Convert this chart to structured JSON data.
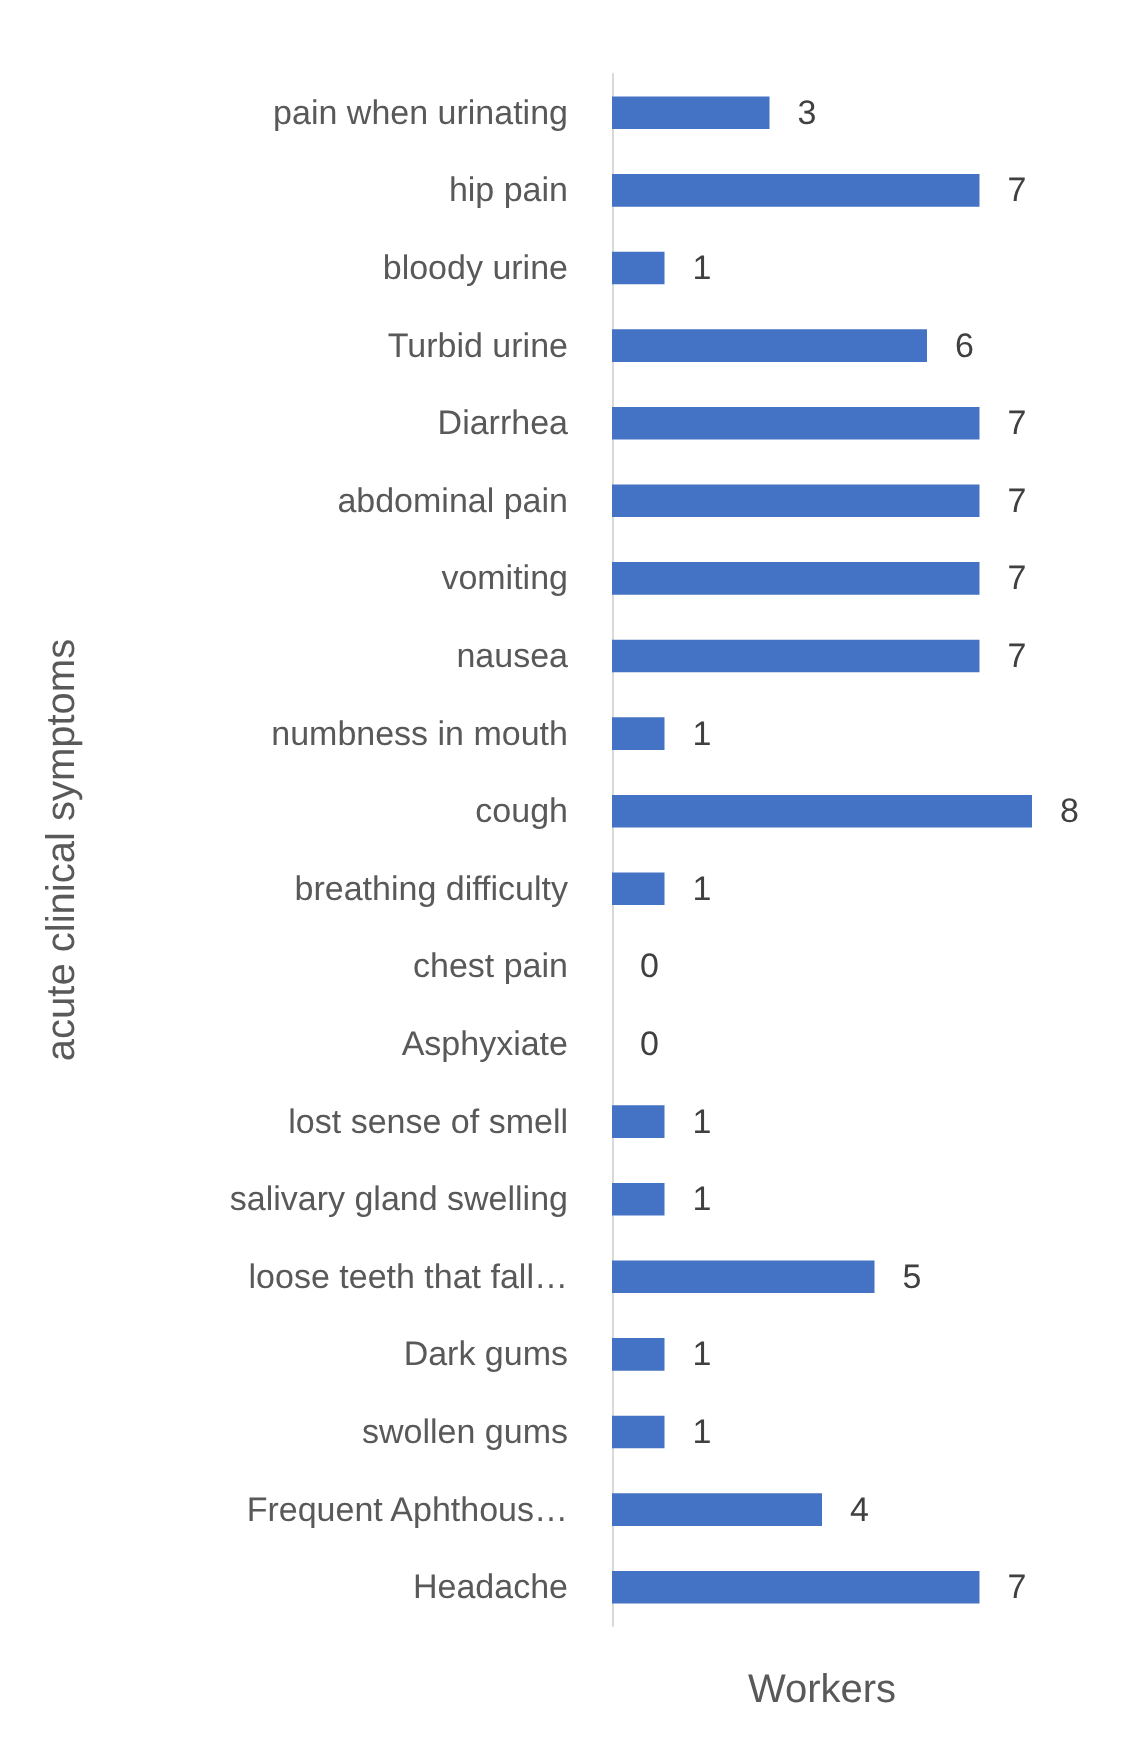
{
  "chart_data": {
    "type": "bar",
    "orientation": "horizontal",
    "xlabel": "Workers",
    "ylabel": "acute clinical symptoms",
    "categories": [
      "pain when urinating",
      "hip pain",
      "bloody urine",
      "Turbid urine",
      "Diarrhea",
      "abdominal pain",
      "vomiting",
      "nausea",
      "numbness in mouth",
      "cough",
      "breathing difficulty",
      "chest pain",
      "Asphyxiate",
      "lost sense of smell",
      "salivary gland swelling",
      "loose teeth that fall…",
      "Dark gums",
      "swollen gums",
      "Frequent Aphthous…",
      "Headache"
    ],
    "values": [
      3,
      7,
      1,
      6,
      7,
      7,
      7,
      7,
      1,
      8,
      1,
      0,
      0,
      1,
      1,
      5,
      1,
      1,
      4,
      7
    ],
    "color": "#4472c4",
    "data_labels": true
  }
}
